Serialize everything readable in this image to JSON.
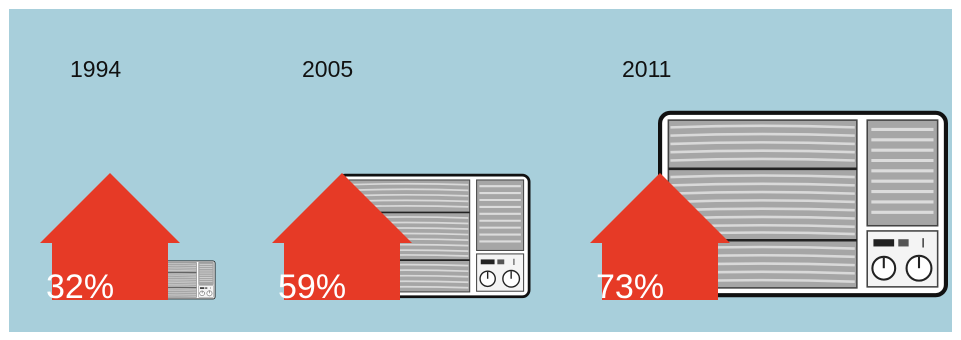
{
  "chart_data": {
    "type": "pictogram",
    "categories": [
      "1994",
      "2005",
      "2011"
    ],
    "values": [
      32,
      59,
      73
    ],
    "value_labels": [
      "32%",
      "59%",
      "73%"
    ]
  },
  "colors": {
    "background": "#a8cfdb",
    "house": "#e63a26",
    "appliance_body": "#ffffff",
    "appliance_outline": "#111111",
    "grille": "#9a9a9a",
    "label_text": "#111111",
    "value_text": "#ffffff"
  },
  "icons": [
    "house-arrow-icon",
    "window-air-conditioner-icon"
  ]
}
